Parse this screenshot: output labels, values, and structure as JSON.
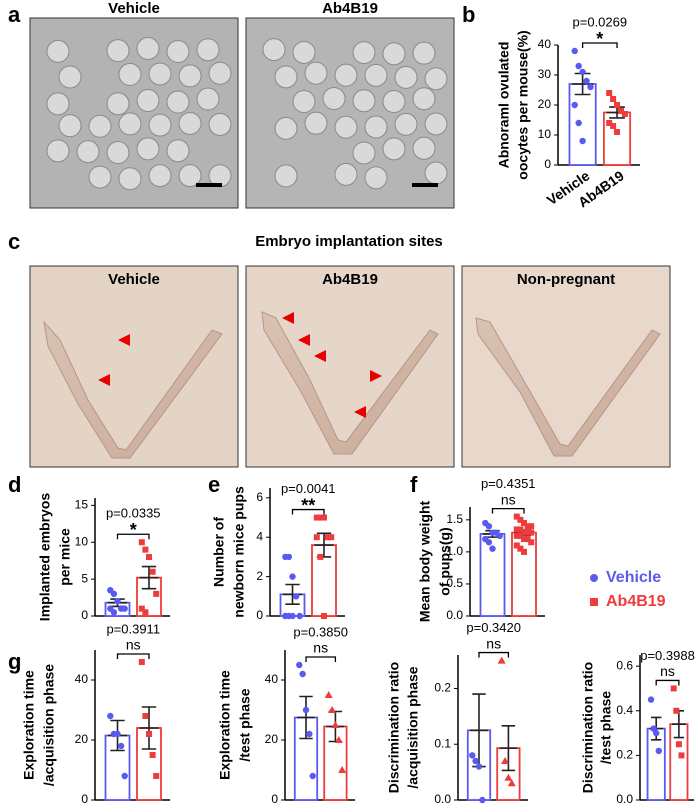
{
  "figure": {
    "panels": [
      "a",
      "b",
      "c",
      "d",
      "e",
      "f",
      "g"
    ],
    "images_a": [
      "Vehicle",
      "Ab4B19"
    ],
    "images_c_title": "Embryo implantation sites",
    "images_c": [
      "Vehicle",
      "Ab4B19",
      "Non-pregnant"
    ]
  },
  "legend": [
    {
      "name": "Vehicle",
      "color": "#5a5af0",
      "marker": "circle"
    },
    {
      "name": "Ab4B19",
      "color": "#ee3b3b",
      "marker": "square"
    }
  ],
  "chart_data": [
    {
      "type": "bar",
      "ylabel": [
        "Abnoraml ovulated",
        "oocytes per mouse(%)"
      ],
      "categories": [
        "Vehicle",
        "Ab4B19"
      ],
      "colors": [
        "#5a5af0",
        "#ee3b3b"
      ],
      "markers": [
        "circle",
        "square"
      ],
      "values": [
        27,
        17.5
      ],
      "errors": [
        3.5,
        1.8
      ],
      "points": [
        [
          38,
          33,
          31,
          28,
          26,
          20,
          14,
          8
        ],
        [
          24,
          22,
          20,
          18,
          17,
          14,
          13,
          11
        ]
      ],
      "ylim": [
        0,
        40
      ],
      "yticks": [
        0,
        10,
        20,
        30,
        40
      ],
      "p_label": "p=0.0269",
      "sig": "*"
    },
    {
      "type": "bar",
      "ylabel": [
        "Implanted embryos",
        "per mice"
      ],
      "categories": [
        null,
        null
      ],
      "colors": [
        "#5a5af0",
        "#ee3b3b"
      ],
      "markers": [
        "circle",
        "square"
      ],
      "values": [
        1.8,
        5.2
      ],
      "errors": [
        0.5,
        1.5
      ],
      "points": [
        [
          3.5,
          3,
          2,
          1,
          1,
          1,
          0.5
        ],
        [
          10,
          9,
          8,
          6,
          3,
          1,
          0.5
        ]
      ],
      "ylim": [
        0,
        16
      ],
      "yticks": [
        0,
        5,
        10,
        15
      ],
      "p_label": "p=0.0335",
      "sig": "*"
    },
    {
      "type": "bar",
      "ylabel": [
        "Number of",
        "newborn mice pups"
      ],
      "categories": [
        null,
        null
      ],
      "colors": [
        "#5a5af0",
        "#ee3b3b"
      ],
      "markers": [
        "circle",
        "square"
      ],
      "values": [
        1.1,
        3.6
      ],
      "errors": [
        0.5,
        0.6
      ],
      "points": [
        [
          3,
          3,
          2,
          1,
          0,
          0,
          0,
          0
        ],
        [
          5,
          5,
          5,
          4,
          4,
          4,
          3,
          0
        ]
      ],
      "ylim": [
        0,
        6.5
      ],
      "yticks": [
        0,
        2,
        4,
        6
      ],
      "p_label": "p=0.0041",
      "sig": "**"
    },
    {
      "type": "bar",
      "ylabel": [
        "Mean body weight",
        "of pups(g)"
      ],
      "categories": [
        null,
        null
      ],
      "colors": [
        "#5a5af0",
        "#ee3b3b"
      ],
      "markers": [
        "circle",
        "square"
      ],
      "values": [
        1.28,
        1.3
      ],
      "errors": [
        0.05,
        0.04
      ],
      "points": [
        [
          1.45,
          1.4,
          1.3,
          1.3,
          1.25,
          1.2,
          1.15,
          1.05
        ],
        [
          1.55,
          1.5,
          1.45,
          1.4,
          1.4,
          1.35,
          1.35,
          1.3,
          1.3,
          1.3,
          1.25,
          1.25,
          1.2,
          1.2,
          1.15,
          1.1,
          1.05,
          1.0
        ]
      ],
      "ylim": [
        0,
        1.7
      ],
      "yticks": [
        {
          "value": 0,
          "label": "0.0"
        },
        0.5,
        {
          "value": 1,
          "label": "1.0"
        },
        1.5
      ],
      "p_label": "p=0.4351",
      "sig": "ns"
    },
    {
      "type": "bar",
      "ylabel": [
        "Exploration time",
        "/acquisition phase"
      ],
      "categories": [
        null,
        null
      ],
      "colors": [
        "#5a5af0",
        "#ee3b3b"
      ],
      "markers": [
        "circle",
        "square"
      ],
      "values": [
        21.5,
        24
      ],
      "errors": [
        5,
        7
      ],
      "points": [
        [
          28,
          22,
          22,
          18,
          8
        ],
        [
          46,
          28,
          22,
          15,
          8
        ]
      ],
      "ylim": [
        0,
        50
      ],
      "yticks": [
        0,
        20,
        40
      ],
      "p_label": "p=0.3911",
      "sig": "ns"
    },
    {
      "type": "bar",
      "ylabel": [
        "Exploration time",
        "/test phase"
      ],
      "categories": [
        null,
        null
      ],
      "colors": [
        "#5a5af0",
        "#ee3b3b"
      ],
      "markers": [
        "circle",
        "triangle"
      ],
      "values": [
        27.5,
        24.5
      ],
      "errors": [
        7,
        5
      ],
      "points": [
        [
          45,
          42,
          30,
          22,
          8
        ],
        [
          35,
          30,
          25,
          20,
          10
        ]
      ],
      "ylim": [
        0,
        50
      ],
      "yticks": [
        0,
        20,
        40
      ],
      "p_label": "p=0.3850",
      "sig": "ns"
    },
    {
      "type": "bar",
      "ylabel": [
        "Discrimination ratio",
        "/acquisition phase"
      ],
      "categories": [
        null,
        null
      ],
      "colors": [
        "#5a5af0",
        "#ee3b3b"
      ],
      "markers": [
        "circle",
        "triangle"
      ],
      "values": [
        0.125,
        0.093
      ],
      "errors": [
        0.065,
        0.04
      ],
      "points": [
        [
          0.08,
          0.07,
          0.06,
          0.0
        ],
        [
          0.25,
          0.07,
          0.04,
          0.03
        ]
      ],
      "ylim": [
        0,
        0.26
      ],
      "yticks": [
        {
          "value": 0,
          "label": "0.0"
        },
        0.1,
        0.2
      ],
      "p_label": "p=0.3420",
      "sig": "ns"
    },
    {
      "type": "bar",
      "ylabel": [
        "Discrimination ratio",
        "/test phase"
      ],
      "categories": [
        null,
        null
      ],
      "colors": [
        "#5a5af0",
        "#ee3b3b"
      ],
      "markers": [
        "circle",
        "square"
      ],
      "values": [
        0.32,
        0.34
      ],
      "errors": [
        0.05,
        0.06
      ],
      "points": [
        [
          0.45,
          0.32,
          0.3,
          0.22
        ],
        [
          0.5,
          0.4,
          0.25,
          0.2
        ]
      ],
      "ylim": [
        0,
        0.65
      ],
      "yticks": [
        {
          "value": 0,
          "label": "0.0"
        },
        0.2,
        0.4,
        0.6
      ],
      "p_label": "p=0.3988",
      "sig": "ns"
    }
  ]
}
